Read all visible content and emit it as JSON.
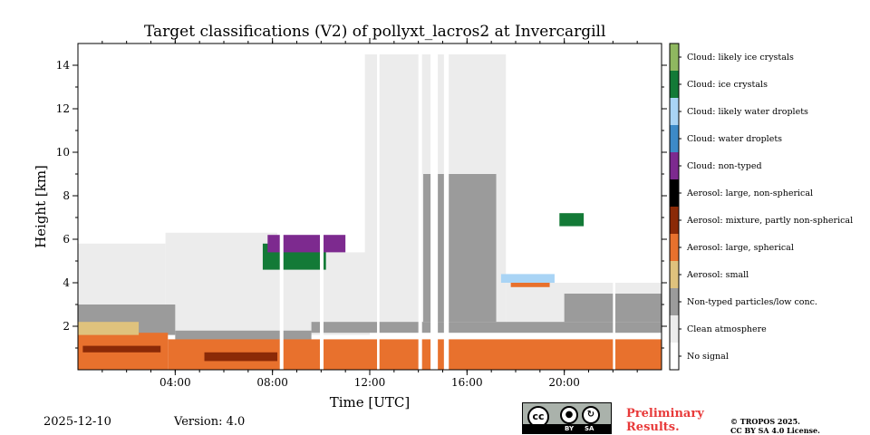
{
  "chart_data": {
    "type": "heatmap",
    "title": "Target classifications (V2) of pollyxt_lacros2 at Invercargill",
    "xlabel": "Time [UTC]",
    "ylabel": "Height [km]",
    "xlim": [
      0,
      24
    ],
    "ylim": [
      0,
      15
    ],
    "x_ticks": [
      {
        "value": 4,
        "label": "04:00"
      },
      {
        "value": 8,
        "label": "08:00"
      },
      {
        "value": 12,
        "label": "12:00"
      },
      {
        "value": 16,
        "label": "16:00"
      },
      {
        "value": 20,
        "label": "20:00"
      }
    ],
    "y_ticks": [
      {
        "value": 2,
        "label": "2"
      },
      {
        "value": 4,
        "label": "4"
      },
      {
        "value": 6,
        "label": "6"
      },
      {
        "value": 8,
        "label": "8"
      },
      {
        "value": 10,
        "label": "10"
      },
      {
        "value": 12,
        "label": "12"
      },
      {
        "value": 14,
        "label": "14"
      }
    ],
    "classes": [
      {
        "label": "No signal",
        "color": "#ffffff"
      },
      {
        "label": "Clean atmosphere",
        "color": "#ececec"
      },
      {
        "label": "Non-typed particles/low conc.",
        "color": "#9b9b9b"
      },
      {
        "label": "Aerosol: small",
        "color": "#dfc27d"
      },
      {
        "label": "Aerosol: large, spherical",
        "color": "#e8712d"
      },
      {
        "label": "Aerosol: mixture, partly non-spherical",
        "color": "#8b2a07"
      },
      {
        "label": "Aerosol: large, non-spherical",
        "color": "#000000"
      },
      {
        "label": "Cloud: non-typed",
        "color": "#7d2a8f"
      },
      {
        "label": "Cloud: water droplets",
        "color": "#3d8ac7"
      },
      {
        "label": "Cloud: likely water droplets",
        "color": "#a9d4f5"
      },
      {
        "label": "Cloud: ice crystals",
        "color": "#137a37"
      },
      {
        "label": "Cloud: likely ice crystals",
        "color": "#8fb860"
      }
    ],
    "regions": [
      {
        "class": "Clean atmosphere",
        "time": [
          0.0,
          3.6
        ],
        "height": [
          2.0,
          5.8
        ]
      },
      {
        "class": "Clean atmosphere",
        "time": [
          3.6,
          8.2
        ],
        "height": [
          1.6,
          6.3
        ]
      },
      {
        "class": "Clean atmosphere",
        "time": [
          8.2,
          12.0
        ],
        "height": [
          1.6,
          5.4
        ]
      },
      {
        "class": "Clean atmosphere",
        "time": [
          11.8,
          17.6
        ],
        "height": [
          1.8,
          14.5
        ]
      },
      {
        "class": "Clean atmosphere",
        "time": [
          17.6,
          24.0
        ],
        "height": [
          1.8,
          4.0
        ]
      },
      {
        "class": "Non-typed particles/low conc.",
        "time": [
          0.0,
          4.0
        ],
        "height": [
          1.6,
          3.0
        ]
      },
      {
        "class": "Non-typed particles/low conc.",
        "time": [
          4.0,
          9.6
        ],
        "height": [
          0.6,
          1.8
        ]
      },
      {
        "class": "Non-typed particles/low conc.",
        "time": [
          9.6,
          24.0
        ],
        "height": [
          1.7,
          2.2
        ]
      },
      {
        "class": "Non-typed particles/low conc.",
        "time": [
          14.2,
          17.2
        ],
        "height": [
          2.2,
          9.0
        ]
      },
      {
        "class": "Non-typed particles/low conc.",
        "time": [
          20.0,
          24.0
        ],
        "height": [
          2.2,
          3.5
        ]
      },
      {
        "class": "Aerosol: large, spherical",
        "time": [
          0.0,
          3.7
        ],
        "height": [
          0.0,
          1.7
        ]
      },
      {
        "class": "Aerosol: large, spherical",
        "time": [
          3.7,
          24.0
        ],
        "height": [
          0.0,
          1.4
        ]
      },
      {
        "class": "Aerosol: large, spherical",
        "time": [
          17.8,
          19.4
        ],
        "height": [
          3.8,
          4.2
        ]
      },
      {
        "class": "Aerosol: small",
        "time": [
          0.0,
          2.5
        ],
        "height": [
          1.6,
          2.2
        ]
      },
      {
        "class": "Aerosol: mixture, partly non-spherical",
        "time": [
          5.2,
          8.2
        ],
        "height": [
          0.4,
          0.8
        ]
      },
      {
        "class": "Aerosol: mixture, partly non-spherical",
        "time": [
          0.2,
          3.4
        ],
        "height": [
          0.8,
          1.1
        ]
      },
      {
        "class": "Cloud: ice crystals",
        "time": [
          7.6,
          10.2
        ],
        "height": [
          4.6,
          5.8
        ]
      },
      {
        "class": "Cloud: non-typed",
        "time": [
          7.8,
          11.0
        ],
        "height": [
          5.4,
          6.2
        ]
      },
      {
        "class": "Cloud: likely water droplets",
        "time": [
          17.4,
          19.6
        ],
        "height": [
          4.0,
          4.4
        ]
      },
      {
        "class": "Cloud: ice crystals",
        "time": [
          19.8,
          20.8
        ],
        "height": [
          6.6,
          7.2
        ]
      },
      {
        "class": "No signal",
        "time": [
          8.3,
          8.45
        ],
        "height": [
          0.0,
          15.0
        ]
      },
      {
        "class": "No signal",
        "time": [
          9.95,
          10.1
        ],
        "height": [
          0.0,
          15.0
        ]
      },
      {
        "class": "No signal",
        "time": [
          12.3,
          12.4
        ],
        "height": [
          0.0,
          15.0
        ]
      },
      {
        "class": "No signal",
        "time": [
          14.0,
          14.15
        ],
        "height": [
          0.0,
          15.0
        ]
      },
      {
        "class": "No signal",
        "time": [
          14.5,
          14.8
        ],
        "height": [
          0.0,
          15.0
        ]
      },
      {
        "class": "No signal",
        "time": [
          15.05,
          15.25
        ],
        "height": [
          0.0,
          15.0
        ]
      },
      {
        "class": "No signal",
        "time": [
          22.0,
          22.1
        ],
        "height": [
          0.0,
          15.0
        ]
      }
    ]
  },
  "footer": {
    "date": "2025-12-10",
    "version": "Version: 4.0",
    "preliminary_line1": "Preliminary",
    "preliminary_line2": "Results.",
    "copyright_line1": "© TROPOS 2025.",
    "copyright_line2": "CC BY SA 4.0 License.",
    "cc_mark": "cc",
    "cc_by": "BY",
    "cc_sa": "SA"
  }
}
